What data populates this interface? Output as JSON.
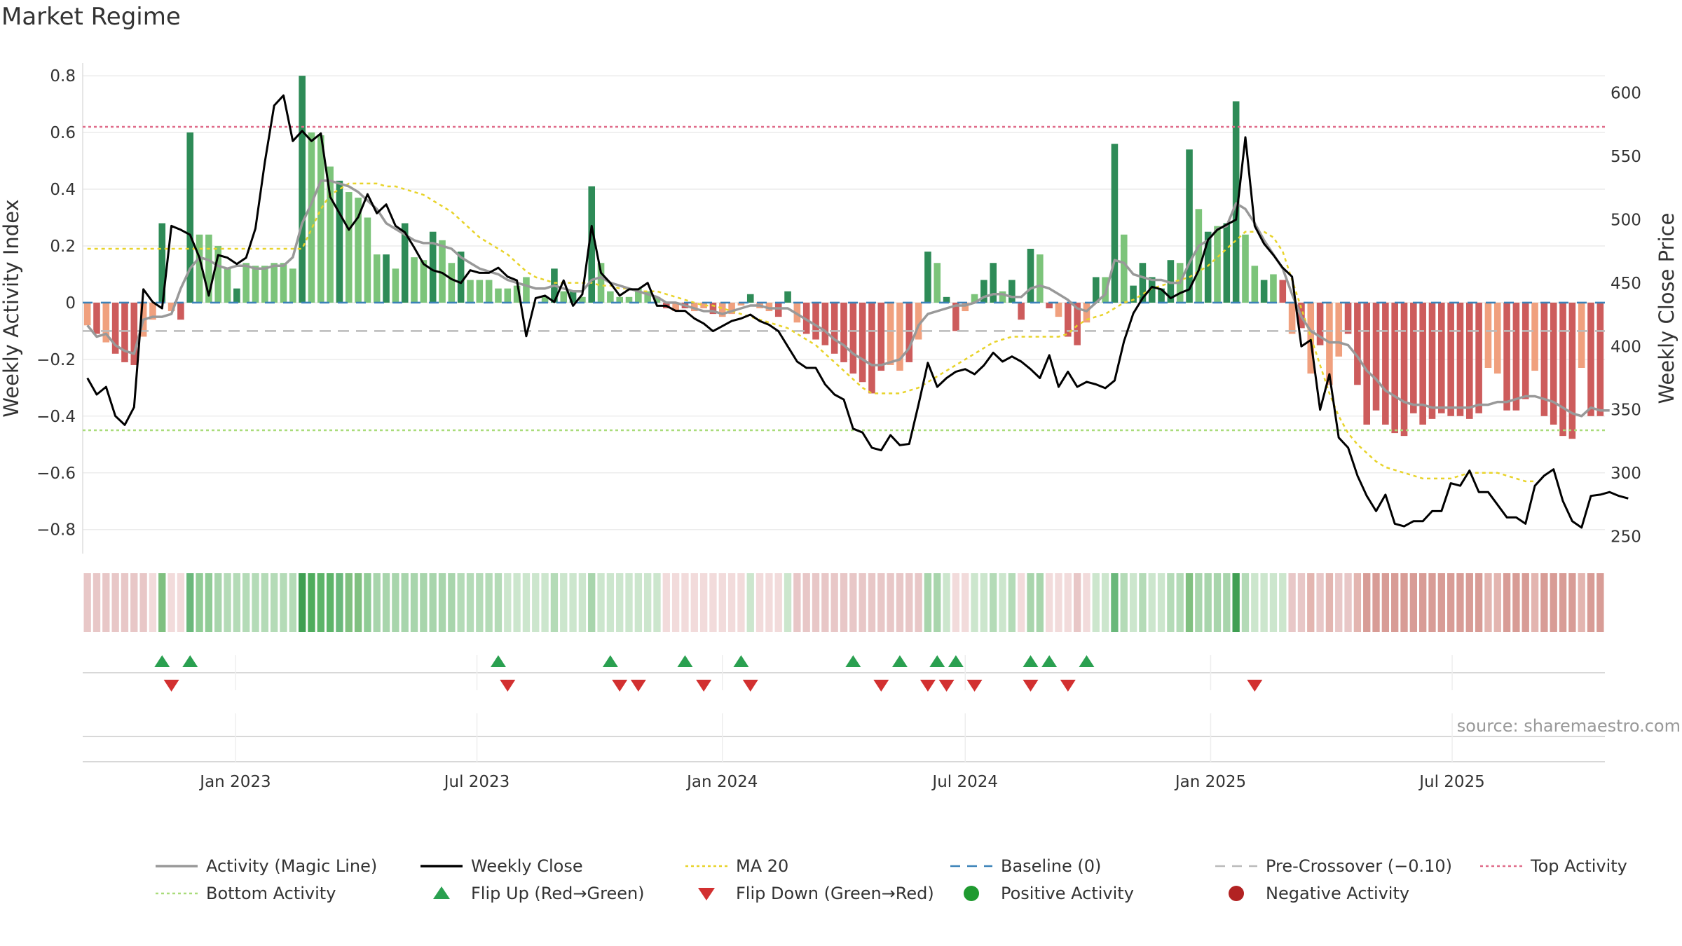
{
  "page": {
    "title": "Market Regime",
    "source": "source: sharemaestro.com"
  },
  "colors": {
    "pos_strong": "#2e8b57",
    "pos_weak": "#7cc47a",
    "neg_strong": "#cd5c5c",
    "neg_weak": "#f0a07e",
    "activity_line": "#999999",
    "close_line": "#000000",
    "ma_line": "#e8d32a",
    "baseline": "#3b82b8",
    "pre_crossover": "#bbbbbb",
    "top_activity": "#e06c8a",
    "bottom_activity": "#a9dc7a",
    "flip_up": "#2aa050",
    "flip_down": "#d23030",
    "positive_dot": "#1f9a30",
    "negative_dot": "#b22222"
  },
  "chart_data": {
    "type": "bar",
    "x_start": "2022-09-12",
    "x_step_days": 7,
    "x_ticks": [
      "Jan 2023",
      "Jul 2023",
      "Jan 2024",
      "Jul 2024",
      "Jan 2025",
      "Jul 2025"
    ],
    "y_left": {
      "label": "Weekly Activity Index",
      "range": [
        -0.86,
        0.82
      ],
      "ticks": [
        0.8,
        0.6,
        0.4,
        0.2,
        0,
        -0.2,
        -0.4,
        -0.6,
        -0.8
      ],
      "tick_labels": [
        "0.8",
        "0.6",
        "0.4",
        "0.2",
        "0",
        "−0.2",
        "−0.4",
        "−0.6",
        "−0.8"
      ]
    },
    "y_right": {
      "label": "Weekly Close Price",
      "range": [
        242,
        618
      ],
      "ticks": [
        600,
        550,
        500,
        450,
        400,
        350,
        300,
        250
      ],
      "tick_labels": [
        "600",
        "550",
        "500",
        "450",
        "400",
        "350",
        "300",
        "250"
      ]
    },
    "series": [
      {
        "name": "Weekly Activity Index (bars)",
        "values": [
          -0.08,
          -0.11,
          -0.14,
          -0.18,
          -0.21,
          -0.22,
          -0.12,
          -0.06,
          0.28,
          -0.03,
          -0.06,
          0.6,
          0.24,
          0.24,
          0.2,
          0.12,
          0.05,
          0.14,
          0.13,
          0.13,
          0.14,
          0.14,
          0.12,
          0.8,
          0.6,
          0.59,
          0.48,
          0.43,
          0.39,
          0.37,
          0.3,
          0.17,
          0.17,
          0.12,
          0.28,
          0.16,
          0.15,
          0.25,
          0.22,
          0.14,
          0.18,
          0.08,
          0.08,
          0.08,
          0.05,
          0.05,
          0.06,
          0.09,
          0.0,
          0.02,
          0.12,
          0.04,
          0.04,
          0.02,
          0.41,
          0.14,
          0.04,
          0.02,
          0.02,
          0.05,
          0.04,
          0.02,
          -0.02,
          -0.03,
          -0.02,
          -0.03,
          -0.02,
          -0.04,
          -0.05,
          -0.04,
          -0.01,
          0.03,
          -0.02,
          -0.03,
          -0.05,
          0.04,
          -0.07,
          -0.11,
          -0.13,
          -0.15,
          -0.18,
          -0.21,
          -0.25,
          -0.28,
          -0.32,
          -0.24,
          -0.22,
          -0.24,
          -0.21,
          -0.13,
          0.18,
          0.14,
          0.02,
          -0.1,
          -0.03,
          0.03,
          0.08,
          0.14,
          0.04,
          0.08,
          -0.06,
          0.19,
          0.17,
          -0.02,
          -0.05,
          -0.12,
          -0.15,
          -0.07,
          0.09,
          0.09,
          0.56,
          0.24,
          0.06,
          0.14,
          0.09,
          0.05,
          0.15,
          0.14,
          0.54,
          0.33,
          0.25,
          0.27,
          0.28,
          0.71,
          0.24,
          0.13,
          0.08,
          0.1,
          0.08,
          -0.11,
          -0.09,
          -0.25,
          -0.15,
          -0.29,
          -0.19,
          -0.11,
          -0.29,
          -0.43,
          -0.38,
          -0.43,
          -0.46,
          -0.47,
          -0.39,
          -0.43,
          -0.41,
          -0.39,
          -0.4,
          -0.4,
          -0.41,
          -0.39,
          -0.23,
          -0.25,
          -0.38,
          -0.38,
          -0.34,
          -0.24,
          -0.4,
          -0.43,
          -0.47,
          -0.48,
          -0.23,
          -0.4,
          -0.4
        ],
        "colors": [
          "nw",
          "ns",
          "nw",
          "ns",
          "ns",
          "ns",
          "nw",
          "nw",
          "ps",
          "nw",
          "ns",
          "ps",
          "pw",
          "pw",
          "pw",
          "pw",
          "ps",
          "pw",
          "pw",
          "pw",
          "pw",
          "pw",
          "pw",
          "ps",
          "pw",
          "pw",
          "pw",
          "ps",
          "pw",
          "pw",
          "pw",
          "pw",
          "ps",
          "pw",
          "ps",
          "pw",
          "pw",
          "ps",
          "pw",
          "pw",
          "ps",
          "pw",
          "pw",
          "pw",
          "pw",
          "pw",
          "pw",
          "pw",
          "pw",
          "pw",
          "ps",
          "pw",
          "ps",
          "pw",
          "ps",
          "pw",
          "pw",
          "pw",
          "pw",
          "pw",
          "pw",
          "pw",
          "ns",
          "nw",
          "ns",
          "nw",
          "nw",
          "ns",
          "nw",
          "nw",
          "nw",
          "ps",
          "nw",
          "nw",
          "ns",
          "ps",
          "nw",
          "ns",
          "ns",
          "ns",
          "ns",
          "ns",
          "ns",
          "ns",
          "ns",
          "ns",
          "nw",
          "nw",
          "ns",
          "nw",
          "ps",
          "pw",
          "ps",
          "ns",
          "nw",
          "pw",
          "ps",
          "ps",
          "pw",
          "ps",
          "ns",
          "ps",
          "pw",
          "ns",
          "nw",
          "ns",
          "ns",
          "nw",
          "ps",
          "pw",
          "ps",
          "pw",
          "ps",
          "ps",
          "ps",
          "ps",
          "ps",
          "pw",
          "ps",
          "pw",
          "ps",
          "pw",
          "ps",
          "ps",
          "pw",
          "pw",
          "ps",
          "pw",
          "ns",
          "nw",
          "ns",
          "nw",
          "ns",
          "nw",
          "nw",
          "ns",
          "ns",
          "ns",
          "ns",
          "ns",
          "ns",
          "ns",
          "ns",
          "ns",
          "ns",
          "ns",
          "ns",
          "ns",
          "ns",
          "ns",
          "nw",
          "nw",
          "ns",
          "ns",
          "ns",
          "nw",
          "ns",
          "ns",
          "ns",
          "ns",
          "nw",
          "ns",
          "ns"
        ]
      },
      {
        "name": "Activity (Magic Line)",
        "values": [
          -0.08,
          -0.12,
          -0.11,
          -0.15,
          -0.17,
          -0.18,
          -0.06,
          -0.05,
          -0.05,
          -0.04,
          0.05,
          0.12,
          0.16,
          0.15,
          0.13,
          0.12,
          0.13,
          0.13,
          0.12,
          0.12,
          0.13,
          0.13,
          0.16,
          0.28,
          0.35,
          0.43,
          0.43,
          0.42,
          0.41,
          0.39,
          0.36,
          0.33,
          0.28,
          0.26,
          0.24,
          0.22,
          0.21,
          0.21,
          0.2,
          0.19,
          0.16,
          0.14,
          0.12,
          0.11,
          0.1,
          0.08,
          0.07,
          0.06,
          0.05,
          0.05,
          0.06,
          0.05,
          0.04,
          0.04,
          0.08,
          0.09,
          0.07,
          0.06,
          0.05,
          0.04,
          0.03,
          0.02,
          0.0,
          0.0,
          -0.01,
          -0.02,
          -0.03,
          -0.03,
          -0.04,
          -0.03,
          -0.02,
          -0.01,
          -0.01,
          -0.02,
          -0.02,
          -0.02,
          -0.04,
          -0.06,
          -0.08,
          -0.1,
          -0.13,
          -0.15,
          -0.18,
          -0.2,
          -0.22,
          -0.22,
          -0.21,
          -0.2,
          -0.16,
          -0.08,
          -0.04,
          -0.03,
          -0.02,
          -0.01,
          -0.01,
          0.0,
          0.02,
          0.03,
          0.03,
          0.02,
          0.02,
          0.05,
          0.06,
          0.05,
          0.03,
          0.01,
          -0.02,
          -0.03,
          0.0,
          0.03,
          0.15,
          0.14,
          0.1,
          0.09,
          0.08,
          0.08,
          0.07,
          0.07,
          0.14,
          0.2,
          0.22,
          0.26,
          0.27,
          0.35,
          0.33,
          0.28,
          0.22,
          0.17,
          0.12,
          0.03,
          -0.05,
          -0.1,
          -0.12,
          -0.14,
          -0.14,
          -0.15,
          -0.19,
          -0.24,
          -0.27,
          -0.31,
          -0.33,
          -0.35,
          -0.36,
          -0.36,
          -0.37,
          -0.37,
          -0.37,
          -0.37,
          -0.37,
          -0.36,
          -0.36,
          -0.35,
          -0.35,
          -0.34,
          -0.33,
          -0.33,
          -0.34,
          -0.35,
          -0.37,
          -0.39,
          -0.4,
          -0.37,
          -0.38,
          -0.38
        ]
      },
      {
        "name": "Weekly Close",
        "axis": "right",
        "values": [
          375,
          362,
          368,
          345,
          338,
          352,
          445,
          435,
          430,
          495,
          492,
          488,
          470,
          440,
          472,
          470,
          465,
          470,
          493,
          545,
          590,
          598,
          562,
          570,
          562,
          568,
          518,
          505,
          492,
          502,
          520,
          505,
          512,
          495,
          490,
          478,
          465,
          460,
          458,
          453,
          450,
          460,
          458,
          458,
          462,
          455,
          452,
          408,
          438,
          440,
          435,
          452,
          432,
          441,
          495,
          458,
          450,
          440,
          445,
          445,
          450,
          432,
          432,
          428,
          428,
          422,
          418,
          412,
          416,
          420,
          422,
          425,
          420,
          417,
          412,
          400,
          388,
          383,
          383,
          370,
          362,
          358,
          335,
          332,
          320,
          318,
          330,
          322,
          323,
          354,
          387,
          368,
          375,
          380,
          382,
          378,
          385,
          395,
          388,
          392,
          388,
          382,
          375,
          393,
          368,
          380,
          368,
          372,
          370,
          367,
          373,
          404,
          426,
          438,
          447,
          445,
          438,
          442,
          445,
          460,
          484,
          492,
          496,
          500,
          565,
          495,
          481,
          472,
          462,
          455,
          400,
          405,
          350,
          378,
          328,
          320,
          298,
          282,
          270,
          283,
          260,
          258,
          262,
          262,
          270,
          270,
          292,
          290,
          302,
          285,
          285,
          275,
          265,
          265,
          260,
          290,
          298,
          303,
          278,
          262,
          257,
          282,
          283,
          285,
          282,
          280
        ]
      },
      {
        "name": "MA 20",
        "values": [
          0.19,
          0.19,
          0.19,
          0.19,
          0.19,
          0.19,
          0.19,
          0.19,
          0.19,
          0.19,
          0.19,
          0.19,
          0.19,
          0.19,
          0.19,
          0.19,
          0.19,
          0.19,
          0.19,
          0.19,
          0.19,
          0.19,
          0.19,
          0.19,
          0.26,
          0.33,
          0.38,
          0.4,
          0.42,
          0.42,
          0.42,
          0.42,
          0.41,
          0.41,
          0.4,
          0.39,
          0.38,
          0.36,
          0.34,
          0.32,
          0.29,
          0.26,
          0.23,
          0.21,
          0.19,
          0.17,
          0.14,
          0.11,
          0.09,
          0.08,
          0.07,
          0.07,
          0.07,
          0.07,
          0.07,
          0.06,
          0.06,
          0.05,
          0.05,
          0.04,
          0.04,
          0.04,
          0.03,
          0.02,
          0.01,
          0.0,
          -0.01,
          -0.01,
          -0.02,
          -0.03,
          -0.04,
          -0.05,
          -0.06,
          -0.07,
          -0.08,
          -0.09,
          -0.11,
          -0.13,
          -0.15,
          -0.18,
          -0.21,
          -0.24,
          -0.27,
          -0.3,
          -0.32,
          -0.32,
          -0.32,
          -0.32,
          -0.31,
          -0.3,
          -0.28,
          -0.26,
          -0.24,
          -0.22,
          -0.2,
          -0.18,
          -0.16,
          -0.14,
          -0.13,
          -0.12,
          -0.12,
          -0.12,
          -0.12,
          -0.12,
          -0.12,
          -0.11,
          -0.08,
          -0.06,
          -0.05,
          -0.04,
          -0.02,
          0.0,
          0.01,
          0.03,
          0.05,
          0.06,
          0.07,
          0.08,
          0.09,
          0.11,
          0.13,
          0.16,
          0.19,
          0.22,
          0.25,
          0.25,
          0.25,
          0.23,
          0.18,
          0.08,
          -0.02,
          -0.12,
          -0.22,
          -0.32,
          -0.4,
          -0.46,
          -0.5,
          -0.53,
          -0.56,
          -0.58,
          -0.59,
          -0.6,
          -0.61,
          -0.62,
          -0.62,
          -0.62,
          -0.62,
          -0.61,
          -0.6,
          -0.6,
          -0.6,
          -0.6,
          -0.61,
          -0.62,
          -0.63,
          -0.63
        ]
      }
    ],
    "baseline": 0,
    "pre_crossover": -0.1,
    "top_activity": 0.62,
    "bottom_activity": -0.45,
    "flip_up_weeks": [
      8,
      11,
      44,
      56,
      64,
      70,
      82,
      87,
      91,
      93,
      101,
      103,
      107
    ],
    "flip_down_weeks": [
      9,
      45,
      57,
      59,
      66,
      71,
      85,
      90,
      92,
      95,
      101,
      105,
      125
    ],
    "regime_strip_colors": [
      "#e8c7c7",
      "#e8c7c7",
      "#e8c7c7",
      "#e8c7c7",
      "#e8c7c7",
      "#e8c7c7",
      "#e8c7c7",
      "#f2dbdb",
      "#80c080",
      "#f2dbdb",
      "#f2dbdb",
      "#6ab87b",
      "#90cc96",
      "#90cc96",
      "#a8d5ac",
      "#b4dbb7",
      "#b4dbb7",
      "#b4dbb7",
      "#b4dbb7",
      "#b4dbb7",
      "#b4dbb7",
      "#b4dbb7",
      "#b4dbb7",
      "#3f9f52",
      "#4fac5d",
      "#5db469",
      "#5db469",
      "#6ab87b",
      "#80c080",
      "#80c080",
      "#90cc96",
      "#a8d5ac",
      "#a8d5ac",
      "#a8d5ac",
      "#a8d5ac",
      "#a8d5ac",
      "#a8d5ac",
      "#a8d5ac",
      "#a8d5ac",
      "#a8d5ac",
      "#b4dbb7",
      "#b4dbb7",
      "#b4dbb7",
      "#b4dbb7",
      "#b4dbb7",
      "#cce6cd",
      "#cce6cd",
      "#cce6cd",
      "#cce6cd",
      "#cce6cd",
      "#b4dbb7",
      "#cce6cd",
      "#cce6cd",
      "#cce6cd",
      "#a8d5ac",
      "#cce6cd",
      "#cce6cd",
      "#cce6cd",
      "#cce6cd",
      "#cce6cd",
      "#cce6cd",
      "#cce6cd",
      "#f2dbdb",
      "#f2dbdb",
      "#f2dbdb",
      "#f2dbdb",
      "#f2dbdb",
      "#f2dbdb",
      "#f2dbdb",
      "#f2dbdb",
      "#f2dbdb",
      "#cce6cd",
      "#f2dbdb",
      "#f2dbdb",
      "#f2dbdb",
      "#cce6cd",
      "#e8c7c7",
      "#e8c7c7",
      "#e8c7c7",
      "#e8c7c7",
      "#e8c7c7",
      "#e8c7c7",
      "#e8c7c7",
      "#e8c7c7",
      "#e8c7c7",
      "#e8c7c7",
      "#e8c7c7",
      "#e8c7c7",
      "#e8c7c7",
      "#e8c7c7",
      "#a8d5ac",
      "#a8d5ac",
      "#cce6cd",
      "#f2dbdb",
      "#f2dbdb",
      "#cce6cd",
      "#cce6cd",
      "#b4dbb7",
      "#cce6cd",
      "#b4dbb7",
      "#f2dbdb",
      "#a8d5ac",
      "#a8d5ac",
      "#f2dbdb",
      "#f2dbdb",
      "#f2dbdb",
      "#e8c7c7",
      "#f2dbdb",
      "#cce6cd",
      "#cce6cd",
      "#6ab87b",
      "#b4dbb7",
      "#cce6cd",
      "#b4dbb7",
      "#cce6cd",
      "#cce6cd",
      "#b4dbb7",
      "#b4dbb7",
      "#80c080",
      "#a8d5ac",
      "#a8d5ac",
      "#a8d5ac",
      "#a8d5ac",
      "#3f9f52",
      "#b4dbb7",
      "#cce6cd",
      "#cce6cd",
      "#cce6cd",
      "#cce6cd",
      "#e8c7c7",
      "#e8c7c7",
      "#e3b5b0",
      "#e8c7c7",
      "#e3b5b0",
      "#e8c7c7",
      "#e8c7c7",
      "#e3b5b0",
      "#d89c96",
      "#d89c96",
      "#d89c96",
      "#d89c96",
      "#d89c96",
      "#d89c96",
      "#d89c96",
      "#d89c96",
      "#d89c96",
      "#d89c96",
      "#d89c96",
      "#d89c96",
      "#d89c96",
      "#e3b5b0",
      "#e3b5b0",
      "#d89c96",
      "#d89c96",
      "#d89c96",
      "#e3b5b0",
      "#d89c96",
      "#d89c96",
      "#d89c96",
      "#d89c96",
      "#e3b5b0",
      "#d89c96",
      "#d89c96"
    ],
    "legend": [
      {
        "label": "Activity (Magic Line)",
        "marker": "line",
        "color": "#999999"
      },
      {
        "label": "Weekly Close",
        "marker": "line",
        "color": "#000000"
      },
      {
        "label": "MA 20",
        "marker": "dotted",
        "color": "#e8d32a"
      },
      {
        "label": "Baseline (0)",
        "marker": "dashed",
        "color": "#3b82b8"
      },
      {
        "label": "Pre-Crossover (−0.10)",
        "marker": "dashed",
        "color": "#bbbbbb"
      },
      {
        "label": "Top Activity",
        "marker": "dotted",
        "color": "#e06c8a"
      },
      {
        "label": "Bottom Activity",
        "marker": "dotted",
        "color": "#a9dc7a"
      },
      {
        "label": "Flip Up (Red→Green)",
        "marker": "triangle-up",
        "color": "#2aa050"
      },
      {
        "label": "Flip Down (Green→Red)",
        "marker": "triangle-down",
        "color": "#d23030"
      },
      {
        "label": "Positive Activity",
        "marker": "dot",
        "color": "#1f9a30"
      },
      {
        "label": "Negative Activity",
        "marker": "dot",
        "color": "#b22222"
      }
    ]
  }
}
